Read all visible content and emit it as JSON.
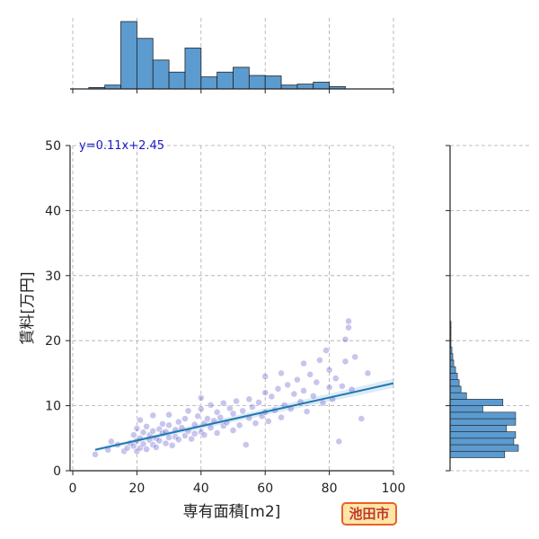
{
  "badge": {
    "label": "池田市"
  },
  "colors": {
    "hist": "#5b9bd0",
    "points": "#3a2fbf",
    "regression": "#1f77b4",
    "equation": "#1a1acc",
    "grid": "#aaaaaa",
    "badge_bg": "#ffe6a8",
    "badge_border": "#e8622a",
    "badge_text": "#c0392b"
  },
  "chart_data": {
    "type": "scatter",
    "xlabel": "専有面積[m2]",
    "ylabel": "賃料[万円]",
    "xlim": [
      0,
      100
    ],
    "ylim": [
      0,
      50
    ],
    "x_ticks": [
      0,
      20,
      40,
      60,
      80,
      100
    ],
    "y_ticks": [
      0,
      10,
      20,
      30,
      40,
      50
    ],
    "grid": true,
    "regression": {
      "label": "y=0.11x+2.45",
      "slope": 0.11,
      "intercept": 2.45,
      "x_range": [
        7,
        100
      ]
    },
    "points": [
      [
        7,
        2.5
      ],
      [
        11,
        3.2
      ],
      [
        12,
        4.5
      ],
      [
        14,
        4.0
      ],
      [
        16,
        3.0
      ],
      [
        17,
        3.5
      ],
      [
        18,
        4.2
      ],
      [
        19,
        3.8
      ],
      [
        19,
        5.5
      ],
      [
        20,
        3.0
      ],
      [
        20,
        4.6
      ],
      [
        20,
        6.5
      ],
      [
        21,
        3.5
      ],
      [
        21,
        5.0
      ],
      [
        21,
        7.8
      ],
      [
        22,
        4.1
      ],
      [
        22,
        5.9
      ],
      [
        23,
        3.3
      ],
      [
        23,
        6.8
      ],
      [
        24,
        4.7
      ],
      [
        24,
        5.5
      ],
      [
        25,
        4.0
      ],
      [
        25,
        6.1
      ],
      [
        25,
        8.5
      ],
      [
        26,
        5.0
      ],
      [
        26,
        3.6
      ],
      [
        27,
        6.4
      ],
      [
        27,
        4.6
      ],
      [
        28,
        5.8
      ],
      [
        28,
        7.2
      ],
      [
        29,
        4.2
      ],
      [
        29,
        6.0
      ],
      [
        30,
        5.1
      ],
      [
        30,
        7.0
      ],
      [
        30,
        8.6
      ],
      [
        31,
        3.9
      ],
      [
        32,
        6.3
      ],
      [
        32,
        5.2
      ],
      [
        33,
        7.5
      ],
      [
        33,
        4.8
      ],
      [
        34,
        6.6
      ],
      [
        35,
        5.4
      ],
      [
        35,
        8.0
      ],
      [
        36,
        6.1
      ],
      [
        36,
        9.2
      ],
      [
        37,
        4.9
      ],
      [
        38,
        7.1
      ],
      [
        38,
        5.7
      ],
      [
        39,
        8.4
      ],
      [
        40,
        6.0
      ],
      [
        40,
        9.5
      ],
      [
        40,
        11.2
      ],
      [
        41,
        7.3
      ],
      [
        41,
        5.5
      ],
      [
        42,
        8.0
      ],
      [
        43,
        6.6
      ],
      [
        43,
        10.1
      ],
      [
        44,
        7.7
      ],
      [
        45,
        5.8
      ],
      [
        45,
        9.0
      ],
      [
        46,
        8.2
      ],
      [
        47,
        6.9
      ],
      [
        47,
        10.4
      ],
      [
        48,
        7.4
      ],
      [
        49,
        9.6
      ],
      [
        50,
        6.2
      ],
      [
        50,
        8.8
      ],
      [
        51,
        10.7
      ],
      [
        52,
        7.0
      ],
      [
        53,
        9.2
      ],
      [
        54,
        4.0
      ],
      [
        55,
        8.1
      ],
      [
        55,
        11.0
      ],
      [
        56,
        9.8
      ],
      [
        57,
        7.3
      ],
      [
        58,
        10.5
      ],
      [
        59,
        8.4
      ],
      [
        60,
        12.0
      ],
      [
        60,
        9.0
      ],
      [
        60,
        14.5
      ],
      [
        61,
        7.6
      ],
      [
        62,
        11.4
      ],
      [
        63,
        9.3
      ],
      [
        64,
        12.6
      ],
      [
        65,
        8.2
      ],
      [
        65,
        15.0
      ],
      [
        66,
        10.1
      ],
      [
        67,
        13.2
      ],
      [
        68,
        9.5
      ],
      [
        69,
        11.8
      ],
      [
        70,
        14.0
      ],
      [
        71,
        10.6
      ],
      [
        72,
        16.5
      ],
      [
        72,
        12.3
      ],
      [
        73,
        9.1
      ],
      [
        74,
        14.8
      ],
      [
        75,
        11.5
      ],
      [
        76,
        13.6
      ],
      [
        77,
        17.0
      ],
      [
        78,
        10.4
      ],
      [
        79,
        18.5
      ],
      [
        80,
        12.8
      ],
      [
        80,
        15.5
      ],
      [
        81,
        11.0
      ],
      [
        82,
        14.2
      ],
      [
        83,
        4.5
      ],
      [
        84,
        13.0
      ],
      [
        85,
        16.8
      ],
      [
        85,
        20.2
      ],
      [
        86,
        22.0
      ],
      [
        86,
        23.0
      ],
      [
        87,
        12.5
      ],
      [
        88,
        17.5
      ],
      [
        90,
        8.0
      ],
      [
        92,
        15.0
      ]
    ],
    "x_hist": {
      "bins": [
        5,
        10,
        15,
        20,
        25,
        30,
        35,
        40,
        45,
        50,
        55,
        60,
        65,
        70,
        75,
        80,
        85,
        90,
        95,
        100
      ],
      "counts": [
        3,
        8,
        140,
        105,
        60,
        35,
        85,
        25,
        35,
        45,
        28,
        27,
        8,
        10,
        14,
        5,
        0,
        0,
        0
      ]
    },
    "y_hist": {
      "bins": [
        2,
        3,
        4,
        5,
        6,
        7,
        8,
        9,
        10,
        11,
        12,
        13,
        14,
        15,
        16,
        17,
        18,
        19,
        20,
        21,
        22,
        23
      ],
      "counts": [
        60,
        75,
        70,
        72,
        62,
        72,
        72,
        36,
        58,
        18,
        12,
        10,
        8,
        6,
        4,
        3,
        2,
        1,
        1,
        1,
        1
      ]
    }
  }
}
